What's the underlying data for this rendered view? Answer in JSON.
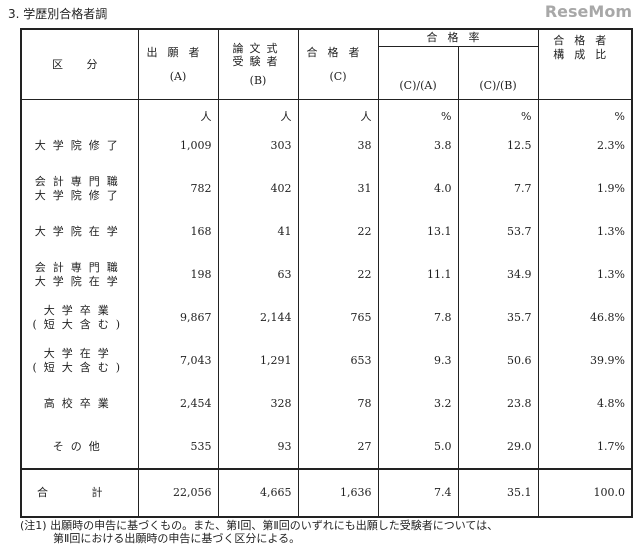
{
  "title": "3. 学歴別合格者調",
  "headers": {
    "category": "区 分",
    "applicants": "出願者",
    "applicants_sub": "(A)",
    "essay": "論文式受験者",
    "essay_sub": "(B)",
    "passers": "合格者",
    "passers_sub": "(C)",
    "rate": "合格率",
    "rate_a": "(C)/(A)",
    "rate_b": "(C)/(B)",
    "composition": "合格者構成比"
  },
  "units": [
    "人",
    "人",
    "人",
    "%",
    "%",
    "%"
  ],
  "rows": [
    {
      "label": "大学院修了",
      "a": "1,009",
      "b": "303",
      "c": "38",
      "ra": "3.8",
      "rb": "12.5",
      "comp": "2.3%"
    },
    {
      "label": "会計専門職\n大学院修了",
      "a": "782",
      "b": "402",
      "c": "31",
      "ra": "4.0",
      "rb": "7.7",
      "comp": "1.9%"
    },
    {
      "label": "大学院在学",
      "a": "168",
      "b": "41",
      "c": "22",
      "ra": "13.1",
      "rb": "53.7",
      "comp": "1.3%"
    },
    {
      "label": "会計専門職\n大学院在学",
      "a": "198",
      "b": "63",
      "c": "22",
      "ra": "11.1",
      "rb": "34.9",
      "comp": "1.3%"
    },
    {
      "label": "大学卒業\n(短大含む)",
      "a": "9,867",
      "b": "2,144",
      "c": "765",
      "ra": "7.8",
      "rb": "35.7",
      "comp": "46.8%"
    },
    {
      "label": "大学在学\n(短大含む)",
      "a": "7,043",
      "b": "1,291",
      "c": "653",
      "ra": "9.3",
      "rb": "50.6",
      "comp": "39.9%"
    },
    {
      "label": "高校卒業",
      "a": "2,454",
      "b": "328",
      "c": "78",
      "ra": "3.2",
      "rb": "23.8",
      "comp": "4.8%"
    },
    {
      "label": "その他",
      "a": "535",
      "b": "93",
      "c": "27",
      "ra": "5.0",
      "rb": "29.0",
      "comp": "1.7%"
    }
  ],
  "total": {
    "label": "合 計",
    "a": "22,056",
    "b": "4,665",
    "c": "1,636",
    "ra": "7.4",
    "rb": "35.1",
    "comp": "100.0"
  },
  "note": "(注1) 出願時の申告に基づくもの。また、第Ⅰ回、第Ⅱ回のいずれにも出願した受験者については、\n　　　第Ⅱ回における出願時の申告に基づく区分による。",
  "watermark": "ReseMom"
}
